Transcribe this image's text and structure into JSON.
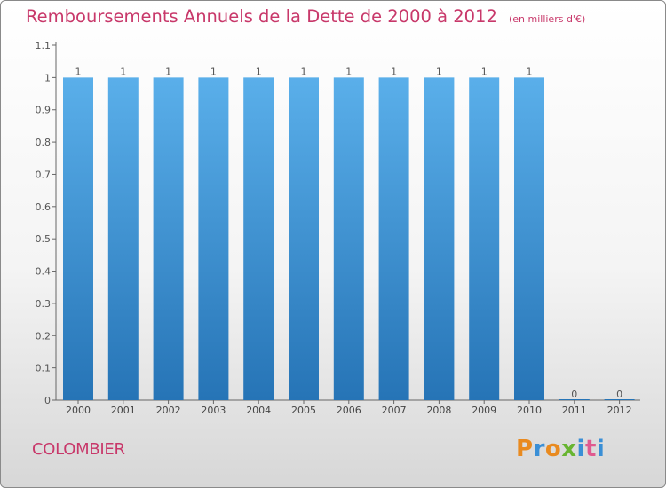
{
  "header": {
    "title": "Remboursements Annuels de la Dette de 2000 à 2012",
    "subtitle": "(en milliers d'€)"
  },
  "footer": {
    "commune": "COLOMBIER",
    "logo_text": "Proxiti"
  },
  "colors": {
    "title": "#c8386a",
    "bar_top": "#5aafea",
    "bar_bottom": "#2674b6",
    "logo_letters": [
      "#e98a1f",
      "#3a8fd6",
      "#e98a1f",
      "#68b531",
      "#3a8fd6",
      "#e05a8f",
      "#3a8fd6"
    ]
  },
  "chart_data": {
    "type": "bar",
    "title": "Remboursements Annuels de la Dette de 2000 à 2012",
    "ylabel": "en milliers d'€",
    "xlabel": "",
    "categories": [
      "2000",
      "2001",
      "2002",
      "2003",
      "2004",
      "2005",
      "2006",
      "2007",
      "2008",
      "2009",
      "2010",
      "2011",
      "2012"
    ],
    "values": [
      1,
      1,
      1,
      1,
      1,
      1,
      1,
      1,
      1,
      1,
      1,
      0,
      0
    ],
    "data_labels": [
      "1",
      "1",
      "1",
      "1",
      "1",
      "1",
      "1",
      "1",
      "1",
      "1",
      "1",
      "0",
      "0"
    ],
    "yticks": [
      0,
      0.1,
      0.2,
      0.3,
      0.4,
      0.5,
      0.6,
      0.7,
      0.8,
      0.9,
      1,
      1.1
    ],
    "ytick_labels": [
      "0",
      "0.1",
      "0.2",
      "0.3",
      "0.4",
      "0.5",
      "0.6",
      "0.7",
      "0.8",
      "0.9",
      "1",
      "1.1"
    ],
    "ylim": [
      0,
      1.1
    ],
    "grid": false
  }
}
